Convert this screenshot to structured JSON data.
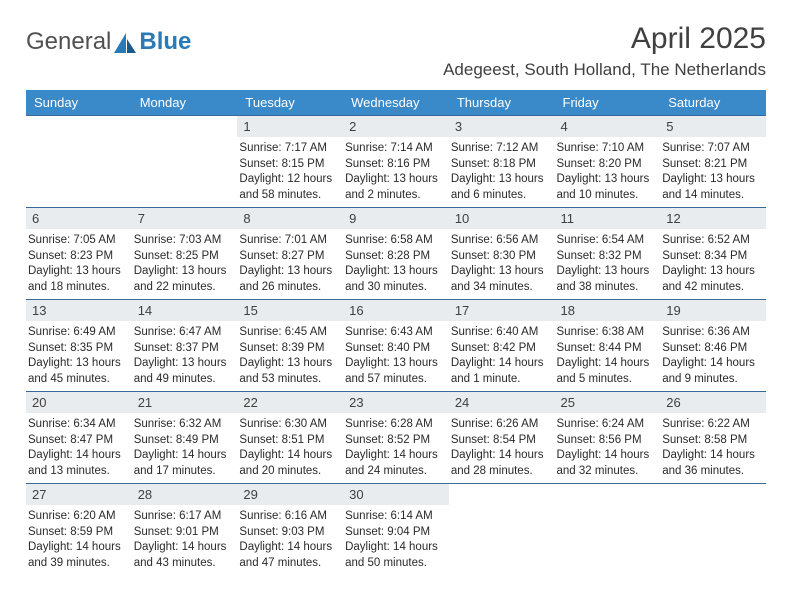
{
  "header": {
    "logo_text_1": "General",
    "logo_text_2": "Blue",
    "month_title": "April 2025",
    "location": "Adegeest, South Holland, The Netherlands"
  },
  "style": {
    "header_bg": "#3a89c9",
    "header_fg": "#ffffff",
    "row_border": "#3a6a9a",
    "daynum_bg": "#e9ecef",
    "logo_blue": "#2a7ab8",
    "page_bg": "#ffffff",
    "text_color": "#2a2a2a"
  },
  "weekdays": [
    "Sunday",
    "Monday",
    "Tuesday",
    "Wednesday",
    "Thursday",
    "Friday",
    "Saturday"
  ],
  "weeks": [
    [
      {
        "n": "",
        "sr": "",
        "ss": "",
        "dl1": "",
        "dl2": ""
      },
      {
        "n": "",
        "sr": "",
        "ss": "",
        "dl1": "",
        "dl2": ""
      },
      {
        "n": "1",
        "sr": "Sunrise: 7:17 AM",
        "ss": "Sunset: 8:15 PM",
        "dl1": "Daylight: 12 hours",
        "dl2": "and 58 minutes."
      },
      {
        "n": "2",
        "sr": "Sunrise: 7:14 AM",
        "ss": "Sunset: 8:16 PM",
        "dl1": "Daylight: 13 hours",
        "dl2": "and 2 minutes."
      },
      {
        "n": "3",
        "sr": "Sunrise: 7:12 AM",
        "ss": "Sunset: 8:18 PM",
        "dl1": "Daylight: 13 hours",
        "dl2": "and 6 minutes."
      },
      {
        "n": "4",
        "sr": "Sunrise: 7:10 AM",
        "ss": "Sunset: 8:20 PM",
        "dl1": "Daylight: 13 hours",
        "dl2": "and 10 minutes."
      },
      {
        "n": "5",
        "sr": "Sunrise: 7:07 AM",
        "ss": "Sunset: 8:21 PM",
        "dl1": "Daylight: 13 hours",
        "dl2": "and 14 minutes."
      }
    ],
    [
      {
        "n": "6",
        "sr": "Sunrise: 7:05 AM",
        "ss": "Sunset: 8:23 PM",
        "dl1": "Daylight: 13 hours",
        "dl2": "and 18 minutes."
      },
      {
        "n": "7",
        "sr": "Sunrise: 7:03 AM",
        "ss": "Sunset: 8:25 PM",
        "dl1": "Daylight: 13 hours",
        "dl2": "and 22 minutes."
      },
      {
        "n": "8",
        "sr": "Sunrise: 7:01 AM",
        "ss": "Sunset: 8:27 PM",
        "dl1": "Daylight: 13 hours",
        "dl2": "and 26 minutes."
      },
      {
        "n": "9",
        "sr": "Sunrise: 6:58 AM",
        "ss": "Sunset: 8:28 PM",
        "dl1": "Daylight: 13 hours",
        "dl2": "and 30 minutes."
      },
      {
        "n": "10",
        "sr": "Sunrise: 6:56 AM",
        "ss": "Sunset: 8:30 PM",
        "dl1": "Daylight: 13 hours",
        "dl2": "and 34 minutes."
      },
      {
        "n": "11",
        "sr": "Sunrise: 6:54 AM",
        "ss": "Sunset: 8:32 PM",
        "dl1": "Daylight: 13 hours",
        "dl2": "and 38 minutes."
      },
      {
        "n": "12",
        "sr": "Sunrise: 6:52 AM",
        "ss": "Sunset: 8:34 PM",
        "dl1": "Daylight: 13 hours",
        "dl2": "and 42 minutes."
      }
    ],
    [
      {
        "n": "13",
        "sr": "Sunrise: 6:49 AM",
        "ss": "Sunset: 8:35 PM",
        "dl1": "Daylight: 13 hours",
        "dl2": "and 45 minutes."
      },
      {
        "n": "14",
        "sr": "Sunrise: 6:47 AM",
        "ss": "Sunset: 8:37 PM",
        "dl1": "Daylight: 13 hours",
        "dl2": "and 49 minutes."
      },
      {
        "n": "15",
        "sr": "Sunrise: 6:45 AM",
        "ss": "Sunset: 8:39 PM",
        "dl1": "Daylight: 13 hours",
        "dl2": "and 53 minutes."
      },
      {
        "n": "16",
        "sr": "Sunrise: 6:43 AM",
        "ss": "Sunset: 8:40 PM",
        "dl1": "Daylight: 13 hours",
        "dl2": "and 57 minutes."
      },
      {
        "n": "17",
        "sr": "Sunrise: 6:40 AM",
        "ss": "Sunset: 8:42 PM",
        "dl1": "Daylight: 14 hours",
        "dl2": "and 1 minute."
      },
      {
        "n": "18",
        "sr": "Sunrise: 6:38 AM",
        "ss": "Sunset: 8:44 PM",
        "dl1": "Daylight: 14 hours",
        "dl2": "and 5 minutes."
      },
      {
        "n": "19",
        "sr": "Sunrise: 6:36 AM",
        "ss": "Sunset: 8:46 PM",
        "dl1": "Daylight: 14 hours",
        "dl2": "and 9 minutes."
      }
    ],
    [
      {
        "n": "20",
        "sr": "Sunrise: 6:34 AM",
        "ss": "Sunset: 8:47 PM",
        "dl1": "Daylight: 14 hours",
        "dl2": "and 13 minutes."
      },
      {
        "n": "21",
        "sr": "Sunrise: 6:32 AM",
        "ss": "Sunset: 8:49 PM",
        "dl1": "Daylight: 14 hours",
        "dl2": "and 17 minutes."
      },
      {
        "n": "22",
        "sr": "Sunrise: 6:30 AM",
        "ss": "Sunset: 8:51 PM",
        "dl1": "Daylight: 14 hours",
        "dl2": "and 20 minutes."
      },
      {
        "n": "23",
        "sr": "Sunrise: 6:28 AM",
        "ss": "Sunset: 8:52 PM",
        "dl1": "Daylight: 14 hours",
        "dl2": "and 24 minutes."
      },
      {
        "n": "24",
        "sr": "Sunrise: 6:26 AM",
        "ss": "Sunset: 8:54 PM",
        "dl1": "Daylight: 14 hours",
        "dl2": "and 28 minutes."
      },
      {
        "n": "25",
        "sr": "Sunrise: 6:24 AM",
        "ss": "Sunset: 8:56 PM",
        "dl1": "Daylight: 14 hours",
        "dl2": "and 32 minutes."
      },
      {
        "n": "26",
        "sr": "Sunrise: 6:22 AM",
        "ss": "Sunset: 8:58 PM",
        "dl1": "Daylight: 14 hours",
        "dl2": "and 36 minutes."
      }
    ],
    [
      {
        "n": "27",
        "sr": "Sunrise: 6:20 AM",
        "ss": "Sunset: 8:59 PM",
        "dl1": "Daylight: 14 hours",
        "dl2": "and 39 minutes."
      },
      {
        "n": "28",
        "sr": "Sunrise: 6:17 AM",
        "ss": "Sunset: 9:01 PM",
        "dl1": "Daylight: 14 hours",
        "dl2": "and 43 minutes."
      },
      {
        "n": "29",
        "sr": "Sunrise: 6:16 AM",
        "ss": "Sunset: 9:03 PM",
        "dl1": "Daylight: 14 hours",
        "dl2": "and 47 minutes."
      },
      {
        "n": "30",
        "sr": "Sunrise: 6:14 AM",
        "ss": "Sunset: 9:04 PM",
        "dl1": "Daylight: 14 hours",
        "dl2": "and 50 minutes."
      },
      {
        "n": "",
        "sr": "",
        "ss": "",
        "dl1": "",
        "dl2": ""
      },
      {
        "n": "",
        "sr": "",
        "ss": "",
        "dl1": "",
        "dl2": ""
      },
      {
        "n": "",
        "sr": "",
        "ss": "",
        "dl1": "",
        "dl2": ""
      }
    ]
  ]
}
